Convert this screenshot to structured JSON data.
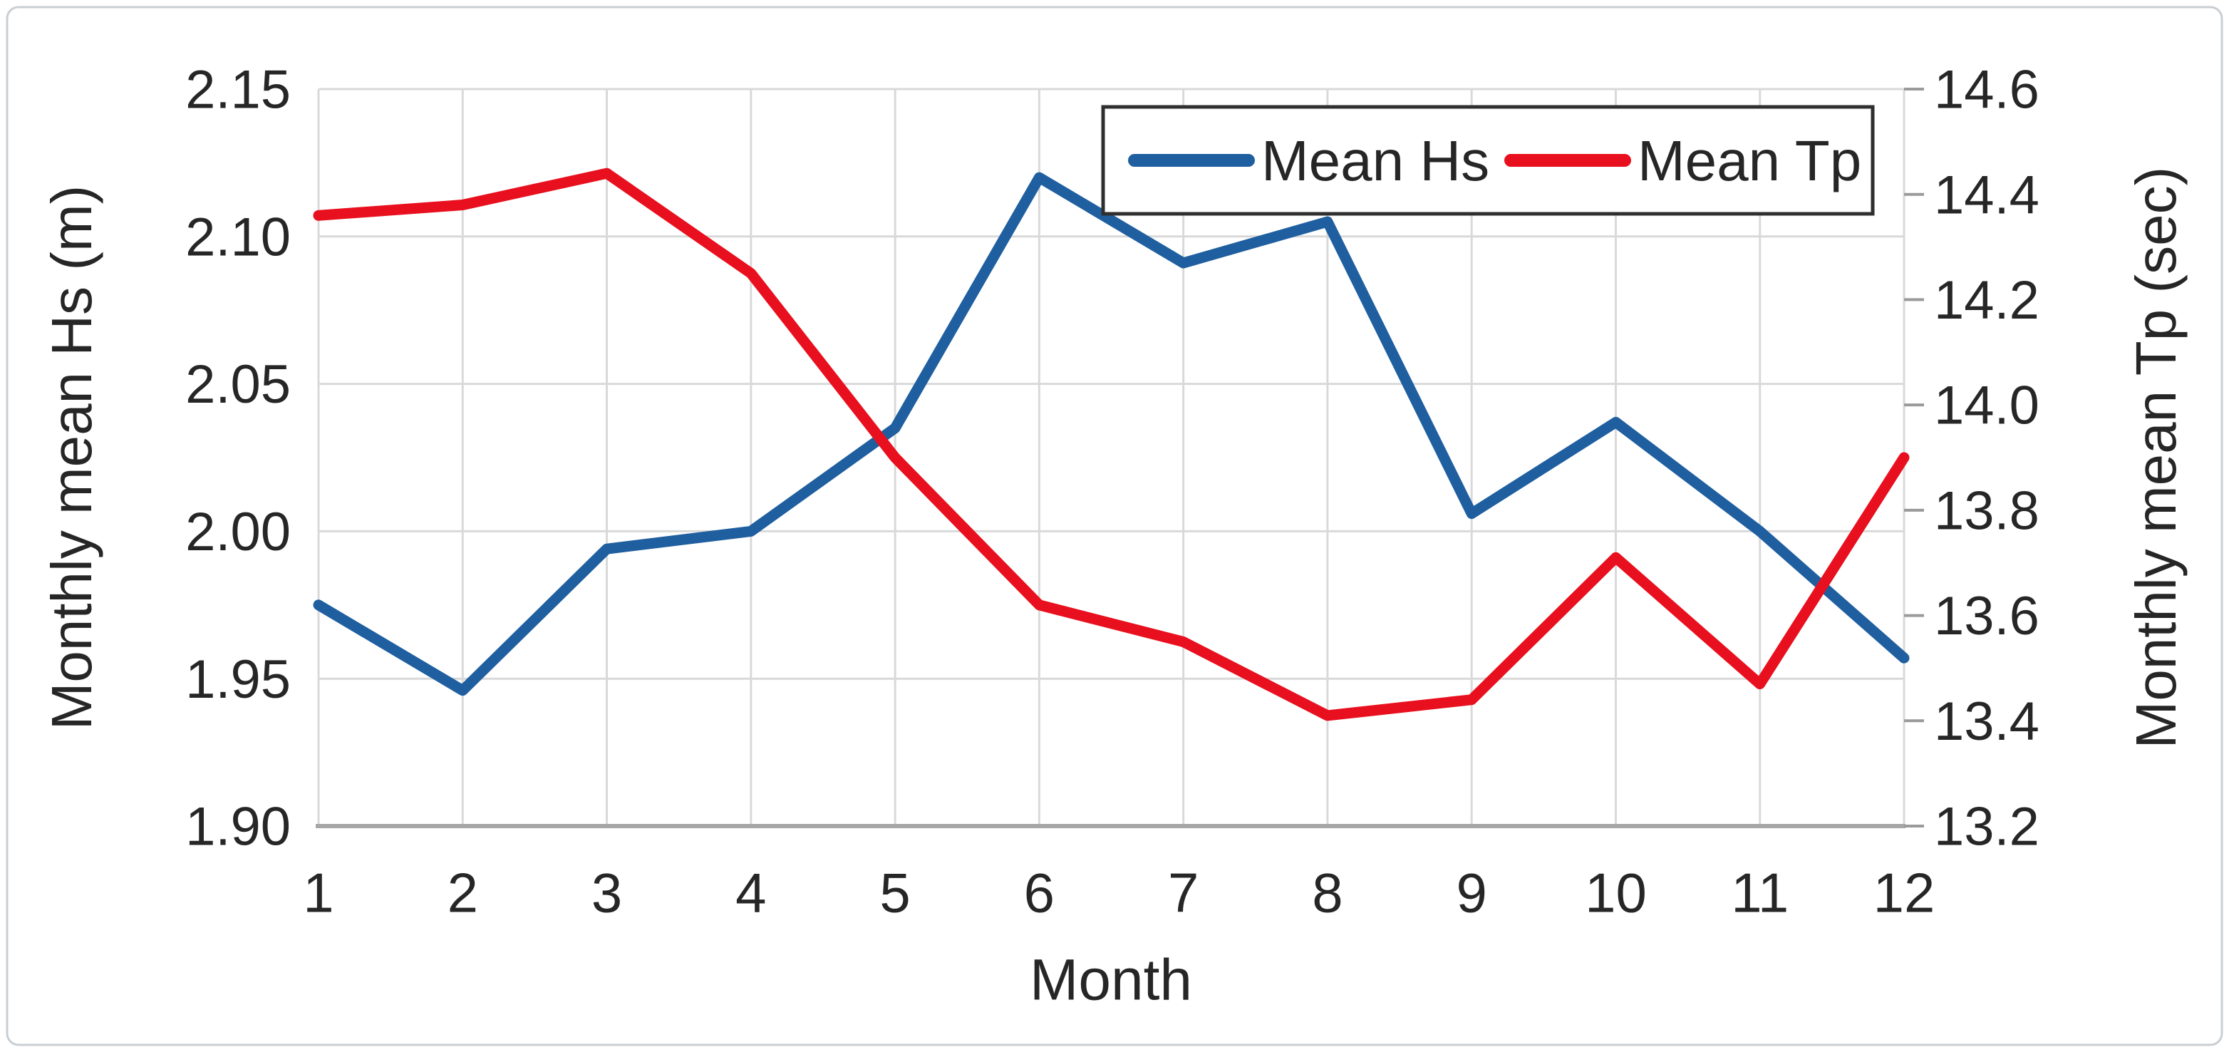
{
  "chart_data": {
    "type": "line",
    "title": "",
    "xlabel": "Month",
    "categories": [
      "1",
      "2",
      "3",
      "4",
      "5",
      "6",
      "7",
      "8",
      "9",
      "10",
      "11",
      "12"
    ],
    "series": [
      {
        "name": "Mean Hs",
        "axis": "left",
        "color": "#1f5fa0",
        "values": [
          1.975,
          1.946,
          1.994,
          2.0,
          2.035,
          2.12,
          2.091,
          2.105,
          2.006,
          2.037,
          2.0,
          1.957
        ]
      },
      {
        "name": "Mean Tp",
        "axis": "right",
        "color": "#e8101e",
        "values": [
          14.36,
          14.38,
          14.44,
          14.25,
          13.9,
          13.62,
          13.55,
          13.41,
          13.44,
          13.71,
          13.47,
          13.9
        ]
      }
    ],
    "left_axis": {
      "label": "Monthly mean Hs (m)",
      "min": 1.9,
      "max": 2.15,
      "step": 0.05,
      "tick_labels": [
        "1.90",
        "1.95",
        "2.00",
        "2.05",
        "2.10",
        "2.15"
      ]
    },
    "right_axis": {
      "label": "Monthly mean Tp (sec)",
      "min": 13.2,
      "max": 14.6,
      "step": 0.2,
      "tick_labels": [
        "13.2",
        "13.4",
        "13.6",
        "13.8",
        "14.0",
        "14.2",
        "14.4",
        "14.6"
      ]
    },
    "legend": {
      "position": "top-right",
      "entries": [
        "Mean Hs",
        "Mean Tp"
      ]
    },
    "grid": true
  },
  "style": {
    "background": "#ffffff",
    "grid_color": "#d9d9d9",
    "axis_line_color": "#a6a6a6",
    "tick_mark_color": "#9a9a9a",
    "text_color": "#262626",
    "legend_border_color": "#2f2f2f",
    "figure_border_color": "#c9ced3",
    "series_blue": "#1f5fa0",
    "series_red": "#e8101e"
  }
}
